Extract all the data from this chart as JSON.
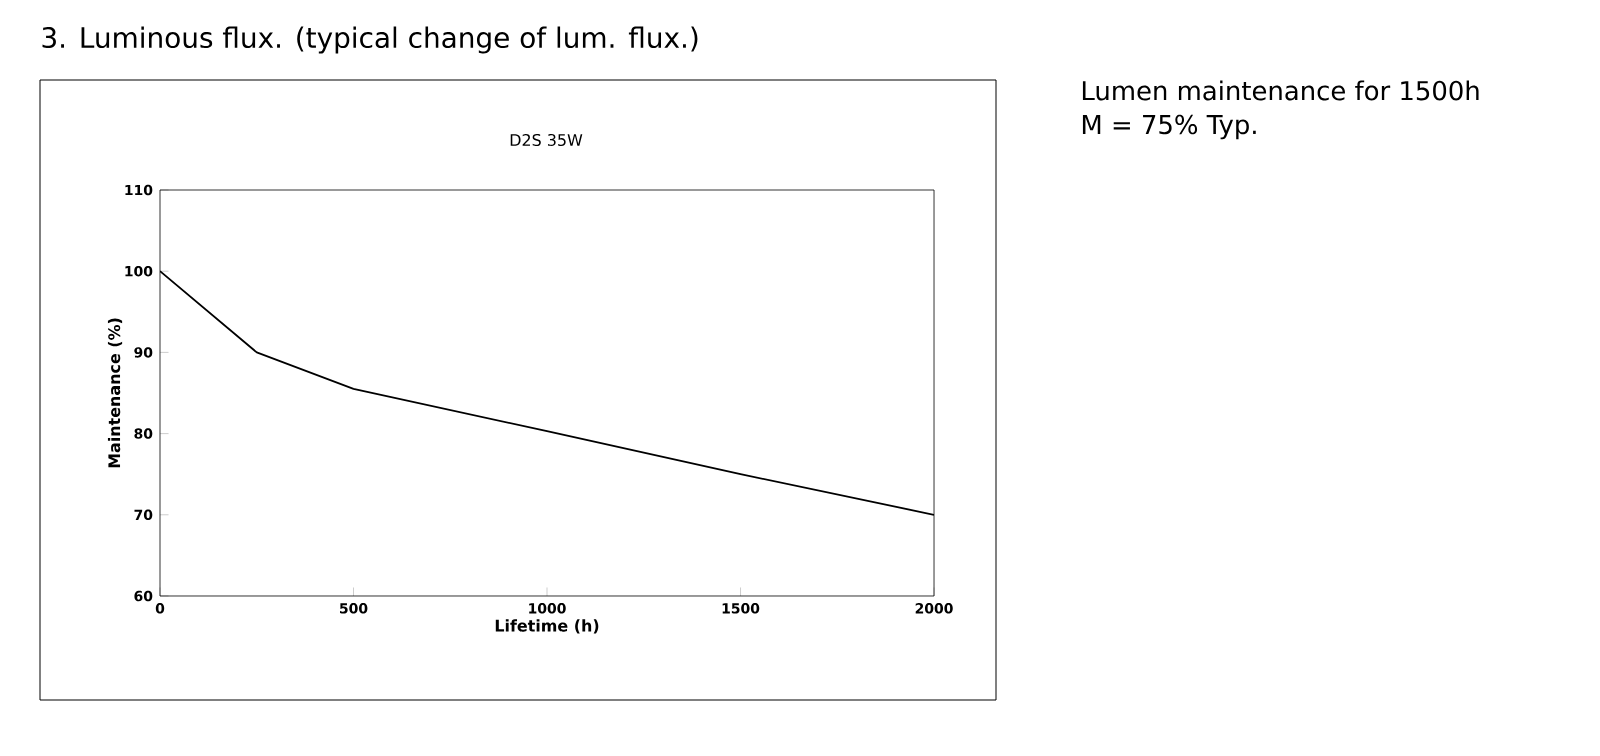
{
  "chart_data": {
    "type": "line",
    "title": "3. Luminous flux. (typical change of lum. flux.)",
    "subtitle": "D2S 35W",
    "xlabel": "Lifetime (h)",
    "ylabel": "Maintenance (%)",
    "x": [
      0,
      250,
      500,
      1000,
      1500,
      2000
    ],
    "series": [
      {
        "color": "#000000",
        "values": [
          100,
          90,
          85.5,
          80.3,
          75,
          70
        ]
      }
    ],
    "xlim": [
      0,
      2000
    ],
    "ylim": [
      60,
      110
    ],
    "xticks": [
      0,
      500,
      1000,
      1500,
      2000
    ],
    "yticks": [
      60,
      70,
      80,
      90,
      100,
      110
    ],
    "grid": false,
    "annotations": [
      "Lumen maintenance for 1500h",
      "M = 75% Typ."
    ]
  }
}
